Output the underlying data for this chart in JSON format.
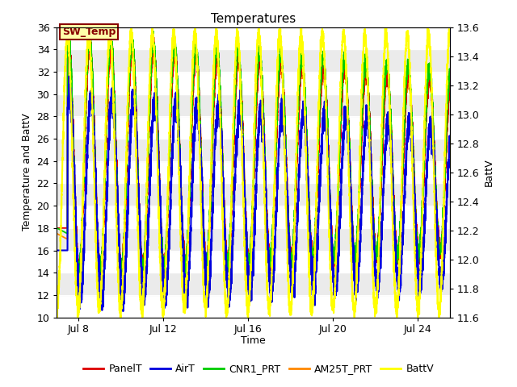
{
  "title": "Temperatures",
  "xlabel": "Time",
  "ylabel_left": "Temperature and BattV",
  "ylabel_right": "BattV",
  "xlim_days": [
    7.0,
    25.5
  ],
  "ylim_left": [
    10,
    36
  ],
  "ylim_right": [
    11.6,
    13.6
  ],
  "xtick_labels": [
    "Jul 8",
    "Jul 12",
    "Jul 16",
    "Jul 20",
    "Jul 24"
  ],
  "xtick_positions": [
    8,
    12,
    16,
    20,
    24
  ],
  "yticks_left": [
    10,
    12,
    14,
    16,
    18,
    20,
    22,
    24,
    26,
    28,
    30,
    32,
    34,
    36
  ],
  "yticks_right": [
    11.6,
    11.8,
    12.0,
    12.2,
    12.4,
    12.6,
    12.8,
    13.0,
    13.2,
    13.4,
    13.6
  ],
  "legend_entries": [
    "PanelT",
    "AirT",
    "CNR1_PRT",
    "AM25T_PRT",
    "BattV"
  ],
  "legend_colors": [
    "#dd0000",
    "#0000dd",
    "#00cc00",
    "#ff8800",
    "#ffff00"
  ],
  "line_colors": {
    "PanelT": "#dd0000",
    "AirT": "#0000dd",
    "CNR1_PRT": "#00cc00",
    "AM25T_PRT": "#ff8800",
    "BattV": "#ffff00"
  },
  "sw_temp_label": "SW_Temp",
  "sw_temp_box_color": "#ffffaa",
  "sw_temp_border_color": "#880000",
  "sw_temp_text_color": "#880000",
  "background_color": "#ffffff",
  "plot_bg_color": "#d8d8d8",
  "grid_band_color": "#ebebeb",
  "seed": 42,
  "n_points": 5000,
  "t_start": 7.0,
  "t_end": 25.5
}
